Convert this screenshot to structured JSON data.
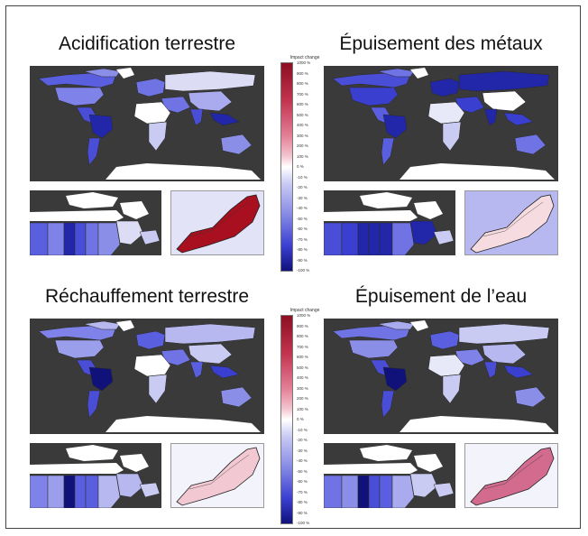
{
  "panels": [
    {
      "title": "Acidification terrestre",
      "fills": {
        "na": "#5a5fe0",
        "us": "#7f82e8",
        "ca": "#8b8ee6",
        "sa": "#4a4ed6",
        "br": "#2226a8",
        "eu": "#6f73e3",
        "ru": "#dcdcf5",
        "af": "#ffffff",
        "afs": "#c9cbf3",
        "me": "#6f73e3",
        "in": "#4a4ed6",
        "cn": "#a9abee",
        "sea": "#2226a8",
        "au": "#8b8ee6"
      },
      "inset_fill": "#a8101f",
      "inset_bg": "#e2e3f7"
    },
    {
      "title": "Épuisement des métaux",
      "fills": {
        "na": "#4a4ed6",
        "us": "#3b3fd0",
        "ca": "#6f73e3",
        "sa": "#5a5fe0",
        "br": "#2226a8",
        "eu": "#2226a8",
        "ru": "#2226a8",
        "af": "#e8e9f8",
        "afs": "#c9cbf3",
        "me": "#3b3fd0",
        "in": "#2226a8",
        "cn": "#ffffff",
        "sea": "#3b3fd0",
        "au": "#6f73e3"
      },
      "inset_fill": "#f6dbe0",
      "inset_bg": "#b6b8ef"
    },
    {
      "title": "Réchauffement terrestre",
      "fills": {
        "na": "#7f82e8",
        "us": "#9b9eea",
        "ca": "#b6b8ef",
        "sa": "#4a4ed6",
        "br": "#10127a",
        "eu": "#5a5fe0",
        "ru": "#b6b8ef",
        "af": "#ffffff",
        "afs": "#c9cbf3",
        "me": "#6f73e3",
        "in": "#5a5fe0",
        "cn": "#c9cbf3",
        "sea": "#3b3fd0",
        "au": "#8b8ee6"
      },
      "inset_fill": "#f2c9d2",
      "inset_bg": "#f3f3fb"
    },
    {
      "title": "Épuisement de l’eau",
      "fills": {
        "na": "#6f73e3",
        "us": "#8b8ee6",
        "ca": "#a9abee",
        "sa": "#4a4ed6",
        "br": "#10127a",
        "eu": "#5a5fe0",
        "ru": "#c9cbf3",
        "af": "#e8e9f8",
        "afs": "#c9cbf3",
        "me": "#7f82e8",
        "in": "#4a4ed6",
        "cn": "#b6b8ef",
        "sea": "#3b3fd0",
        "au": "#8b8ee6"
      },
      "inset_fill": "#d26b8e",
      "inset_bg": "#f3f3fb"
    }
  ],
  "legend": {
    "title": "Impact change",
    "ticks": [
      "1000 %",
      "900 %",
      "800 %",
      "700 %",
      "600 %",
      "500 %",
      "400 %",
      "300 %",
      "200 %",
      "100 %",
      "0 %",
      "-10 %",
      "-20 %",
      "-30 %",
      "-40 %",
      "-50 %",
      "-60 %",
      "-70 %",
      "-80 %",
      "-90 %",
      "-100 %"
    ]
  },
  "colors": {
    "ocean": "#3a3a3a",
    "antarctica": "#ffffff",
    "high": "#8b0f22",
    "zero": "#ffffff",
    "low": "#10127a"
  }
}
